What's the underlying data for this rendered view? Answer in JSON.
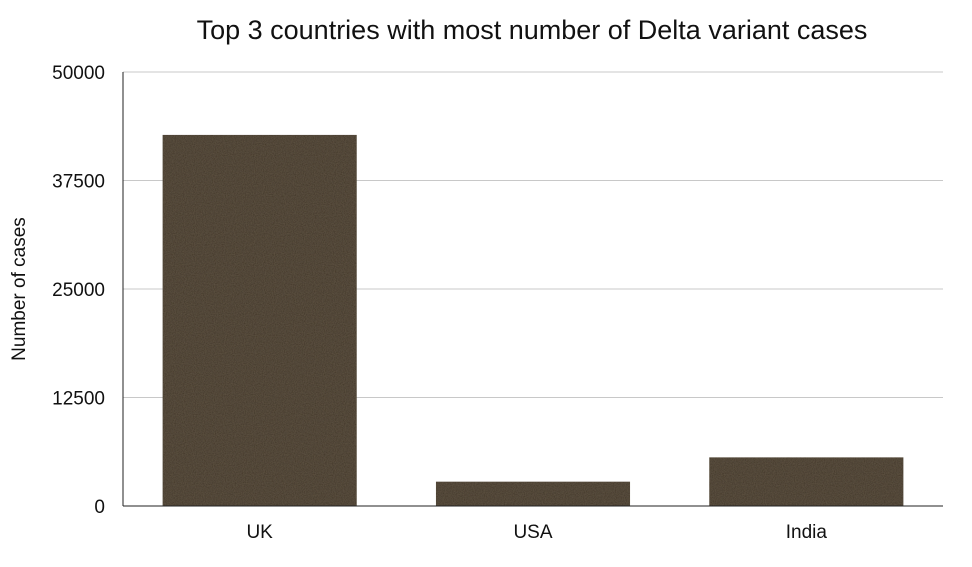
{
  "chart_data": {
    "type": "bar",
    "title": "Top 3 countries with most number of Delta variant cases",
    "xlabel": "",
    "ylabel": "Number of cases",
    "categories": [
      "UK",
      "USA",
      "India"
    ],
    "values": [
      42750,
      2800,
      5600
    ],
    "ylim": [
      0,
      50000
    ],
    "yticks": [
      0,
      12500,
      25000,
      37500,
      50000
    ],
    "grid": true,
    "legend": "none",
    "bar_color": "#3f3526",
    "gridline_color": "#c8c8c8"
  }
}
